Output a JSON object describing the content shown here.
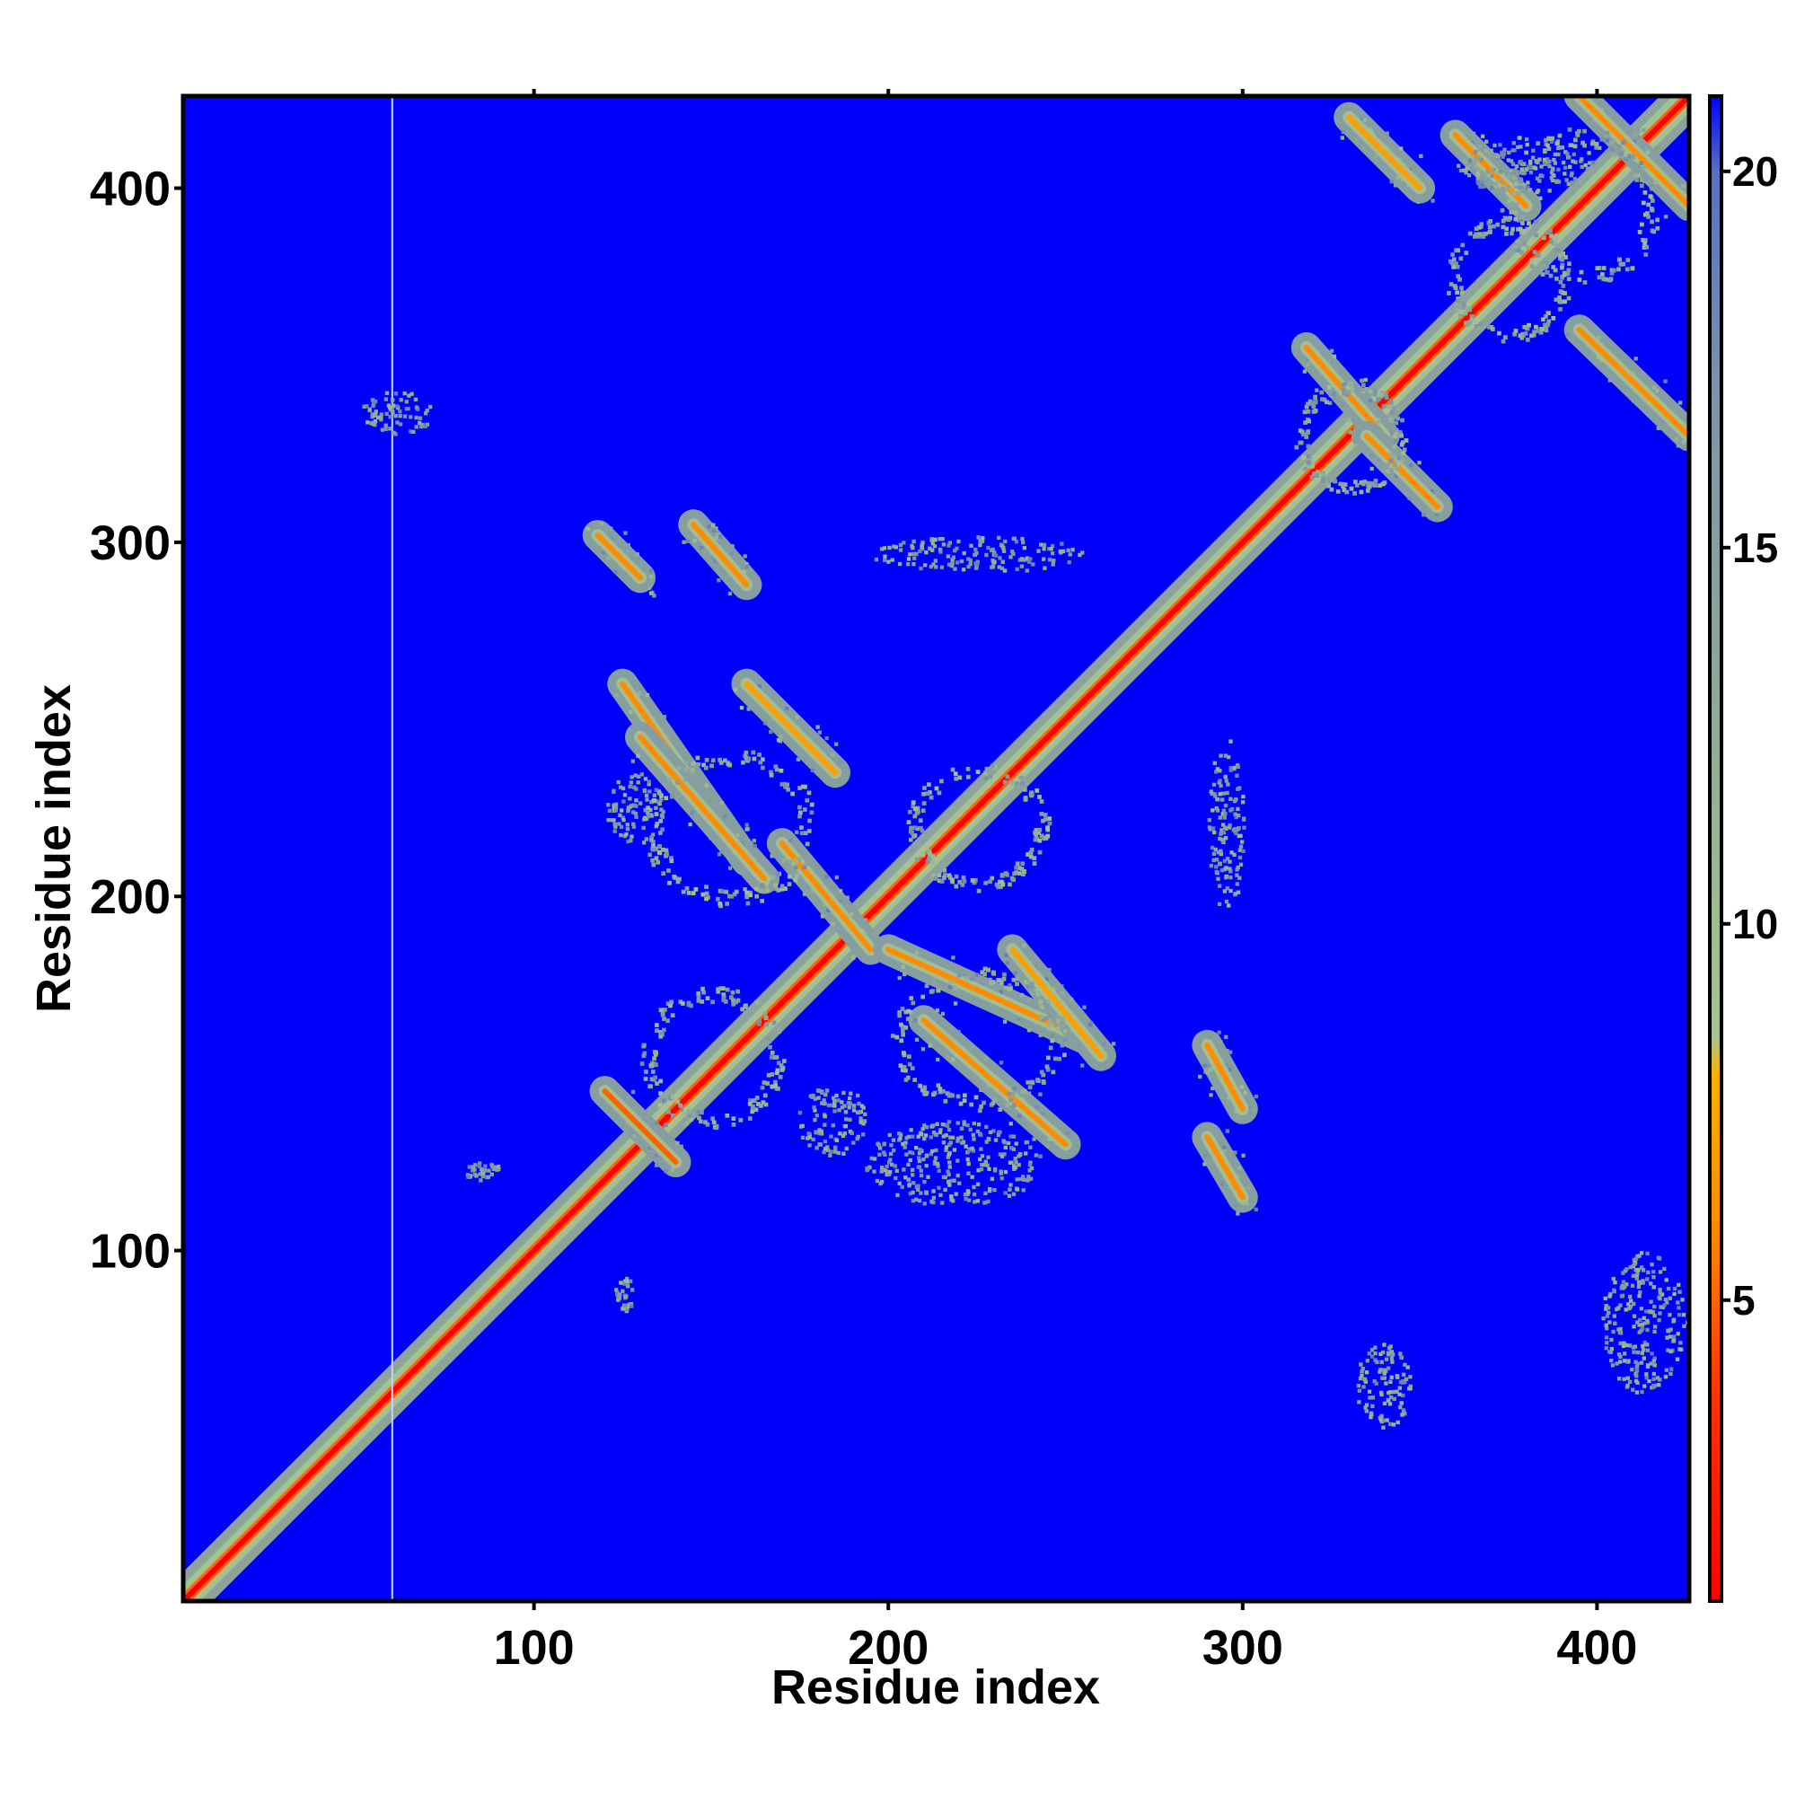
{
  "chart_data": {
    "type": "heatmap",
    "title": "",
    "xlabel": "Residue index",
    "ylabel": "Residue index",
    "xlim": [
      1,
      426
    ],
    "ylim": [
      1,
      426
    ],
    "x_ticks": [
      100,
      200,
      300,
      400
    ],
    "y_ticks": [
      100,
      200,
      300,
      400
    ],
    "x_tick_labels": [
      "100",
      "200",
      "300",
      "400"
    ],
    "y_tick_labels": [
      "100",
      "200",
      "300",
      "400"
    ],
    "background_value": 21,
    "colorbar": {
      "range": [
        1,
        21
      ],
      "ticks": [
        5,
        10,
        15,
        20
      ],
      "tick_labels": [
        "5",
        "10",
        "15",
        "20"
      ],
      "colors": [
        {
          "value": 1,
          "color": "#ff0000"
        },
        {
          "value": 4,
          "color": "#ff3a00"
        },
        {
          "value": 6,
          "color": "#ff8c00"
        },
        {
          "value": 8,
          "color": "#ffb000"
        },
        {
          "value": 8.5,
          "color": "#a7c490"
        },
        {
          "value": 13,
          "color": "#8fa898"
        },
        {
          "value": 17,
          "color": "#7e94a8"
        },
        {
          "value": 20,
          "color": "#5a6fc0"
        },
        {
          "value": 21,
          "color": "#0000ff"
        }
      ]
    },
    "contact_features": [
      {
        "kind": "diagonal",
        "from": 1,
        "to": 426,
        "value": 1
      },
      {
        "kind": "gap_column",
        "x": 60
      },
      {
        "kind": "antiparallel",
        "x": [
          125,
          160
        ],
        "y": [
          260,
          210
        ],
        "value": 6
      },
      {
        "kind": "antiparallel",
        "x": [
          160,
          185
        ],
        "y": [
          260,
          235
        ],
        "value": 7
      },
      {
        "kind": "antiparallel",
        "x": [
          130,
          165
        ],
        "y": [
          245,
          205
        ],
        "value": 6
      },
      {
        "kind": "antiparallel",
        "x": [
          170,
          195
        ],
        "y": [
          215,
          185
        ],
        "value": 6
      },
      {
        "kind": "antiparallel",
        "x": [
          200,
          255
        ],
        "y": [
          185,
          160
        ],
        "value": 6
      },
      {
        "kind": "antiparallel",
        "x": [
          210,
          250
        ],
        "y": [
          165,
          130
        ],
        "value": 6
      },
      {
        "kind": "antiparallel",
        "x": [
          235,
          260
        ],
        "y": [
          185,
          155
        ],
        "value": 7
      },
      {
        "kind": "antiparallel",
        "x": [
          120,
          140
        ],
        "y": [
          145,
          125
        ],
        "value": 5
      },
      {
        "kind": "antiparallel",
        "x": [
          290,
          300
        ],
        "y": [
          158,
          140
        ],
        "value": 6
      },
      {
        "kind": "antiparallel",
        "x": [
          290,
          300
        ],
        "y": [
          132,
          115
        ],
        "value": 6
      },
      {
        "kind": "antiparallel",
        "x": [
          118,
          130
        ],
        "y": [
          302,
          290
        ],
        "value": 6
      },
      {
        "kind": "antiparallel",
        "x": [
          145,
          160
        ],
        "y": [
          305,
          288
        ],
        "value": 6
      },
      {
        "kind": "antiparallel",
        "x": [
          318,
          340
        ],
        "y": [
          355,
          330
        ],
        "value": 6
      },
      {
        "kind": "antiparallel",
        "x": [
          335,
          355
        ],
        "y": [
          330,
          310
        ],
        "value": 6
      },
      {
        "kind": "antiparallel",
        "x": [
          360,
          380
        ],
        "y": [
          415,
          395
        ],
        "value": 6
      },
      {
        "kind": "antiparallel",
        "x": [
          395,
          426
        ],
        "y": [
          426,
          395
        ],
        "value": 6
      },
      {
        "kind": "antiparallel",
        "x": [
          395,
          426
        ],
        "y": [
          360,
          330
        ],
        "value": 6
      },
      {
        "kind": "antiparallel",
        "x": [
          330,
          350
        ],
        "y": [
          420,
          400
        ],
        "value": 7
      },
      {
        "kind": "blob",
        "x": 380,
        "y": 407,
        "rx": 20,
        "ry": 8,
        "value": 16
      },
      {
        "kind": "blob",
        "x": 61,
        "y": 337,
        "rx": 10,
        "ry": 6,
        "value": 16
      },
      {
        "kind": "blob",
        "x": 225,
        "y": 297,
        "rx": 30,
        "ry": 5,
        "value": 16
      },
      {
        "kind": "blob",
        "x": 128,
        "y": 225,
        "rx": 8,
        "ry": 10,
        "value": 16
      },
      {
        "kind": "blob",
        "x": 295,
        "y": 220,
        "rx": 5,
        "ry": 25,
        "value": 16
      },
      {
        "kind": "blob",
        "x": 218,
        "y": 125,
        "rx": 25,
        "ry": 12,
        "value": 16
      },
      {
        "kind": "blob",
        "x": 184,
        "y": 137,
        "rx": 10,
        "ry": 10,
        "value": 16
      },
      {
        "kind": "blob",
        "x": 413,
        "y": 80,
        "rx": 12,
        "ry": 20,
        "value": 16
      },
      {
        "kind": "blob",
        "x": 339,
        "y": 62,
        "rx": 8,
        "ry": 12,
        "value": 16
      },
      {
        "kind": "blob",
        "x": 125,
        "y": 88,
        "rx": 3,
        "ry": 5,
        "value": 16
      },
      {
        "kind": "blob",
        "x": 85,
        "y": 123,
        "rx": 5,
        "ry": 3,
        "value": 16
      }
    ]
  }
}
